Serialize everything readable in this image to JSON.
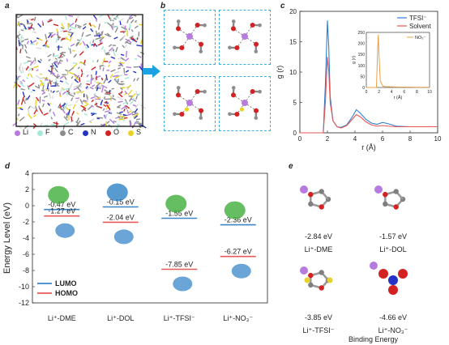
{
  "panels": {
    "a": {
      "letter": "a",
      "legend": [
        {
          "symbol": "Li",
          "color": "#b77be0"
        },
        {
          "symbol": "F",
          "color": "#a4e8d8"
        },
        {
          "symbol": "C",
          "color": "#8d8d8d"
        },
        {
          "symbol": "N",
          "color": "#2433c4"
        },
        {
          "symbol": "O",
          "color": "#d22222"
        },
        {
          "symbol": "S",
          "color": "#e8d22a"
        }
      ]
    },
    "b": {
      "letter": "b"
    },
    "c": {
      "letter": "c"
    },
    "d": {
      "letter": "d"
    },
    "e": {
      "letter": "e"
    }
  },
  "chart_data": [
    {
      "panel": "c",
      "type": "line",
      "xlabel": "r (Å)",
      "ylabel": "g (r)",
      "xlim": [
        0,
        10
      ],
      "ylim": [
        0,
        20
      ],
      "xticks": [
        0,
        2,
        4,
        6,
        8,
        10
      ],
      "yticks": [
        0,
        5,
        10,
        15,
        20
      ],
      "legend_position": "top-right",
      "series": [
        {
          "name": "TFSI⁻",
          "color": "#2f7fd0",
          "x": [
            0,
            1.7,
            1.85,
            2.0,
            2.1,
            2.2,
            2.4,
            2.7,
            3.0,
            3.4,
            3.8,
            4.1,
            4.4,
            4.8,
            5.2,
            5.6,
            6.0,
            6.4,
            7,
            8,
            9,
            10
          ],
          "y": [
            0,
            0,
            8,
            18.5,
            14,
            6,
            2,
            1.0,
            0.9,
            1.3,
            2.6,
            3.8,
            3.2,
            2.2,
            1.6,
            1.4,
            1.7,
            1.5,
            1.1,
            1.0,
            1.0,
            1.0
          ]
        },
        {
          "name": "Solvent",
          "color": "#e25656",
          "x": [
            0,
            1.7,
            1.85,
            2.0,
            2.1,
            2.2,
            2.4,
            2.7,
            3.0,
            3.4,
            3.8,
            4.1,
            4.4,
            4.8,
            5.2,
            5.6,
            6.0,
            6.4,
            7,
            8,
            9,
            10
          ],
          "y": [
            0,
            0,
            5,
            12.5,
            10,
            5,
            2,
            1.0,
            0.8,
            1.2,
            2.2,
            3.0,
            2.6,
            1.8,
            1.3,
            1.1,
            1.2,
            1.1,
            1.0,
            1.0,
            1.0,
            1.0
          ]
        }
      ],
      "inset": {
        "type": "line",
        "xlabel": "r (Å)",
        "ylabel": "g (r)",
        "xlim": [
          0,
          10
        ],
        "ylim": [
          0,
          250
        ],
        "xticks": [
          0,
          2,
          4,
          6,
          8,
          10
        ],
        "yticks": [
          0,
          50,
          100,
          150,
          200,
          250
        ],
        "series": [
          {
            "name": "NO₃⁻",
            "color": "#e8a04a",
            "x": [
              0,
              1.6,
              1.8,
              1.9,
              2.0,
              2.2,
              2.6,
              3.0,
              4,
              5,
              6,
              8,
              10
            ],
            "y": [
              0,
              0,
              180,
              240,
              150,
              30,
              6,
              4,
              3,
              2,
              2,
              1,
              1
            ]
          }
        ]
      }
    },
    {
      "panel": "d",
      "type": "scatter",
      "ylabel": "Energy Level (eV)",
      "ylim": [
        -12,
        4
      ],
      "yticks": [
        4,
        2,
        0,
        -2,
        -4,
        -6,
        -8,
        -10,
        -12
      ],
      "categories": [
        "Li⁺-DME",
        "Li⁺-DOL",
        "Li⁺-TFSI⁻",
        "Li⁺-NO₃⁻"
      ],
      "series": [
        {
          "name": "LUMO",
          "color": "#3a86c8",
          "values": [
            -0.47,
            -0.15,
            -1.55,
            -2.36
          ]
        },
        {
          "name": "HOMO",
          "color": "#e85a5a",
          "values": [
            -1.27,
            -2.04,
            -7.85,
            -6.27
          ]
        }
      ],
      "value_labels": {
        "lumo": [
          "-0.47 eV",
          "-0.15 eV",
          "-1.55 eV",
          "-2.36 eV"
        ],
        "homo": [
          "-1.27 eV",
          "-2.04 eV",
          "-7.85 eV",
          "-6.27 eV"
        ]
      },
      "legend_position": "bottom-left"
    }
  ],
  "binding": {
    "title": "Binding Energy",
    "items": [
      {
        "energy": "-2.84 eV",
        "label": "Li⁺-DME"
      },
      {
        "energy": "-1.57 eV",
        "label": "Li⁺-DOL"
      },
      {
        "energy": "-3.85 eV",
        "label": "Li⁺-TFSI⁻"
      },
      {
        "energy": "-4.66 eV",
        "label": "Li⁺-NO₃⁻"
      }
    ]
  }
}
